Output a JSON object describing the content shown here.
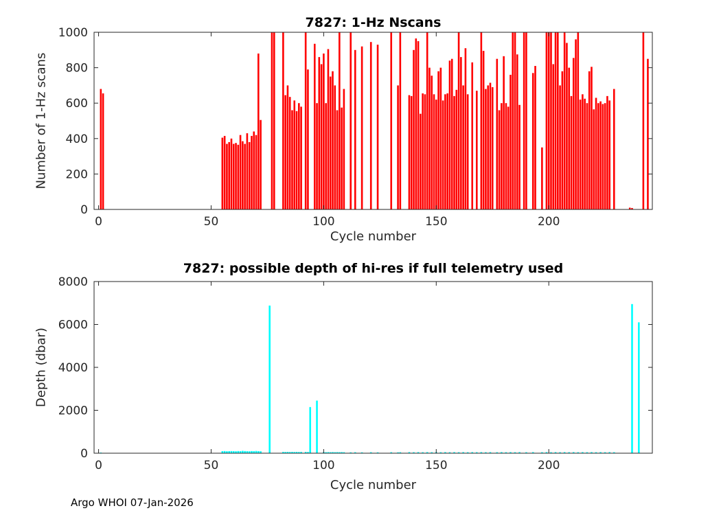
{
  "footer": {
    "credit": "Argo WHOI 07-Jan-2026"
  },
  "chart_data": [
    {
      "type": "bar",
      "title": "7827: 1-Hz Nscans",
      "xlabel": "Cycle number",
      "ylabel": "Number of 1-Hz scans",
      "xlim": [
        -2,
        246
      ],
      "ylim": [
        0,
        1000
      ],
      "xticks": [
        0,
        50,
        100,
        150,
        200
      ],
      "yticks": [
        0,
        200,
        400,
        600,
        800,
        1000
      ],
      "grid": false,
      "bar_color": "#ff0000",
      "points": [
        [
          1,
          680
        ],
        [
          2,
          655
        ],
        [
          55,
          405
        ],
        [
          56,
          415
        ],
        [
          57,
          370
        ],
        [
          58,
          380
        ],
        [
          59,
          400
        ],
        [
          60,
          370
        ],
        [
          61,
          375
        ],
        [
          62,
          365
        ],
        [
          63,
          420
        ],
        [
          64,
          385
        ],
        [
          65,
          370
        ],
        [
          66,
          430
        ],
        [
          67,
          380
        ],
        [
          68,
          415
        ],
        [
          69,
          440
        ],
        [
          70,
          420
        ],
        [
          71,
          880
        ],
        [
          72,
          505
        ],
        [
          77,
          1000
        ],
        [
          78,
          1000
        ],
        [
          82,
          1000
        ],
        [
          83,
          645
        ],
        [
          84,
          700
        ],
        [
          85,
          635
        ],
        [
          86,
          560
        ],
        [
          87,
          615
        ],
        [
          88,
          555
        ],
        [
          89,
          600
        ],
        [
          90,
          580
        ],
        [
          92,
          1000
        ],
        [
          93,
          790
        ],
        [
          96,
          935
        ],
        [
          97,
          600
        ],
        [
          98,
          860
        ],
        [
          99,
          820
        ],
        [
          100,
          880
        ],
        [
          101,
          600
        ],
        [
          102,
          905
        ],
        [
          103,
          750
        ],
        [
          104,
          780
        ],
        [
          105,
          700
        ],
        [
          106,
          560
        ],
        [
          107,
          1000
        ],
        [
          108,
          575
        ],
        [
          109,
          680
        ],
        [
          112,
          1000
        ],
        [
          114,
          900
        ],
        [
          117,
          920
        ],
        [
          121,
          945
        ],
        [
          124,
          930
        ],
        [
          130,
          1000
        ],
        [
          133,
          700
        ],
        [
          134,
          1000
        ],
        [
          138,
          645
        ],
        [
          139,
          640
        ],
        [
          140,
          900
        ],
        [
          141,
          965
        ],
        [
          142,
          950
        ],
        [
          143,
          540
        ],
        [
          144,
          655
        ],
        [
          145,
          650
        ],
        [
          146,
          1000
        ],
        [
          147,
          800
        ],
        [
          148,
          755
        ],
        [
          149,
          650
        ],
        [
          150,
          620
        ],
        [
          151,
          780
        ],
        [
          152,
          800
        ],
        [
          153,
          615
        ],
        [
          154,
          650
        ],
        [
          155,
          655
        ],
        [
          156,
          840
        ],
        [
          157,
          850
        ],
        [
          158,
          640
        ],
        [
          159,
          675
        ],
        [
          160,
          1000
        ],
        [
          161,
          860
        ],
        [
          162,
          700
        ],
        [
          163,
          910
        ],
        [
          164,
          650
        ],
        [
          166,
          830
        ],
        [
          168,
          670
        ],
        [
          170,
          1000
        ],
        [
          171,
          895
        ],
        [
          172,
          680
        ],
        [
          173,
          700
        ],
        [
          174,
          715
        ],
        [
          175,
          690
        ],
        [
          177,
          850
        ],
        [
          178,
          560
        ],
        [
          179,
          600
        ],
        [
          180,
          865
        ],
        [
          181,
          600
        ],
        [
          182,
          580
        ],
        [
          183,
          760
        ],
        [
          184,
          1000
        ],
        [
          185,
          1000
        ],
        [
          186,
          875
        ],
        [
          187,
          590
        ],
        [
          189,
          1000
        ],
        [
          190,
          1000
        ],
        [
          193,
          770
        ],
        [
          194,
          810
        ],
        [
          197,
          350
        ],
        [
          199,
          1000
        ],
        [
          200,
          1000
        ],
        [
          201,
          1000
        ],
        [
          202,
          820
        ],
        [
          203,
          1000
        ],
        [
          204,
          1000
        ],
        [
          205,
          700
        ],
        [
          206,
          780
        ],
        [
          207,
          1000
        ],
        [
          208,
          940
        ],
        [
          209,
          800
        ],
        [
          210,
          640
        ],
        [
          211,
          855
        ],
        [
          212,
          960
        ],
        [
          213,
          1000
        ],
        [
          214,
          620
        ],
        [
          215,
          650
        ],
        [
          216,
          625
        ],
        [
          217,
          600
        ],
        [
          218,
          780
        ],
        [
          219,
          805
        ],
        [
          220,
          565
        ],
        [
          221,
          630
        ],
        [
          222,
          600
        ],
        [
          223,
          610
        ],
        [
          224,
          595
        ],
        [
          225,
          600
        ],
        [
          226,
          640
        ],
        [
          227,
          615
        ],
        [
          229,
          680
        ],
        [
          236,
          10
        ],
        [
          237,
          8
        ],
        [
          242,
          1000
        ],
        [
          244,
          850
        ]
      ]
    },
    {
      "type": "bar",
      "title": "7827: possible depth of hi-res if full telemetry used",
      "xlabel": "Cycle number",
      "ylabel": "Depth (dbar)",
      "xlim": [
        -2,
        246
      ],
      "ylim": [
        0,
        8000
      ],
      "xticks": [
        0,
        50,
        100,
        150,
        200
      ],
      "yticks": [
        0,
        2000,
        4000,
        6000,
        8000
      ],
      "grid": false,
      "bar_color": "#00ffff",
      "points": [
        [
          1,
          30
        ],
        [
          55,
          95
        ],
        [
          56,
          100
        ],
        [
          57,
          90
        ],
        [
          58,
          95
        ],
        [
          59,
          100
        ],
        [
          60,
          95
        ],
        [
          61,
          90
        ],
        [
          62,
          100
        ],
        [
          63,
          95
        ],
        [
          64,
          110
        ],
        [
          65,
          100
        ],
        [
          66,
          95
        ],
        [
          67,
          90
        ],
        [
          68,
          100
        ],
        [
          69,
          95
        ],
        [
          70,
          105
        ],
        [
          71,
          95
        ],
        [
          72,
          90
        ],
        [
          76,
          6880
        ],
        [
          82,
          60
        ],
        [
          83,
          55
        ],
        [
          84,
          60
        ],
        [
          85,
          55
        ],
        [
          86,
          60
        ],
        [
          87,
          55
        ],
        [
          88,
          60
        ],
        [
          89,
          55
        ],
        [
          90,
          60
        ],
        [
          92,
          60
        ],
        [
          93,
          55
        ],
        [
          94,
          2150
        ],
        [
          97,
          2450
        ],
        [
          100,
          50
        ],
        [
          101,
          45
        ],
        [
          102,
          50
        ],
        [
          103,
          45
        ],
        [
          104,
          50
        ],
        [
          105,
          45
        ],
        [
          106,
          50
        ],
        [
          107,
          45
        ],
        [
          108,
          50
        ],
        [
          109,
          45
        ],
        [
          112,
          40
        ],
        [
          114,
          45
        ],
        [
          117,
          40
        ],
        [
          121,
          45
        ],
        [
          124,
          40
        ],
        [
          130,
          45
        ],
        [
          133,
          40
        ],
        [
          134,
          45
        ],
        [
          138,
          50
        ],
        [
          140,
          45
        ],
        [
          142,
          50
        ],
        [
          144,
          45
        ],
        [
          146,
          50
        ],
        [
          148,
          45
        ],
        [
          150,
          50
        ],
        [
          152,
          45
        ],
        [
          154,
          50
        ],
        [
          156,
          45
        ],
        [
          158,
          50
        ],
        [
          160,
          45
        ],
        [
          162,
          50
        ],
        [
          164,
          45
        ],
        [
          166,
          50
        ],
        [
          168,
          45
        ],
        [
          170,
          50
        ],
        [
          172,
          45
        ],
        [
          174,
          50
        ],
        [
          177,
          45
        ],
        [
          179,
          50
        ],
        [
          181,
          45
        ],
        [
          183,
          50
        ],
        [
          185,
          45
        ],
        [
          187,
          50
        ],
        [
          190,
          45
        ],
        [
          193,
          50
        ],
        [
          197,
          45
        ],
        [
          199,
          50
        ],
        [
          201,
          45
        ],
        [
          203,
          50
        ],
        [
          205,
          45
        ],
        [
          207,
          50
        ],
        [
          209,
          45
        ],
        [
          211,
          50
        ],
        [
          213,
          45
        ],
        [
          215,
          50
        ],
        [
          217,
          45
        ],
        [
          219,
          50
        ],
        [
          221,
          45
        ],
        [
          223,
          50
        ],
        [
          225,
          45
        ],
        [
          227,
          50
        ],
        [
          229,
          45
        ],
        [
          237,
          6950
        ],
        [
          240,
          6100
        ]
      ]
    }
  ]
}
